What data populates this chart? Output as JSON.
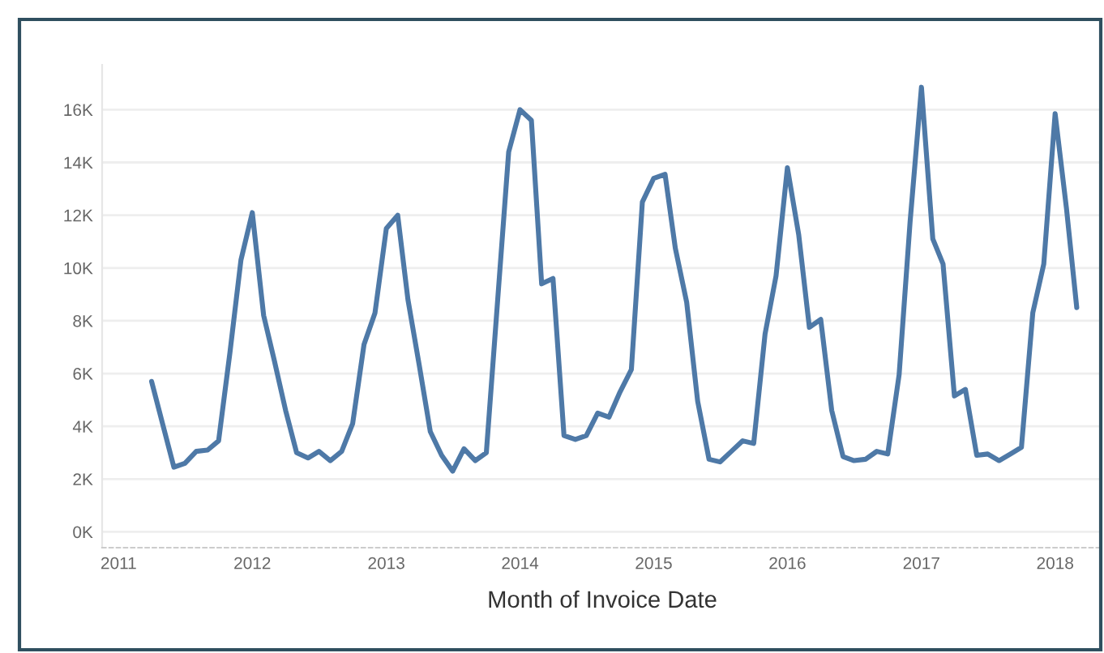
{
  "chart_data": {
    "type": "line",
    "xlabel": "Month of Invoice Date",
    "x": [
      "2011-04",
      "2011-05",
      "2011-06",
      "2011-07",
      "2011-08",
      "2011-09",
      "2011-10",
      "2011-11",
      "2011-12",
      "2012-01",
      "2012-02",
      "2012-03",
      "2012-04",
      "2012-05",
      "2012-06",
      "2012-07",
      "2012-08",
      "2012-09",
      "2012-10",
      "2012-11",
      "2012-12",
      "2013-01",
      "2013-02",
      "2013-03",
      "2013-04",
      "2013-05",
      "2013-06",
      "2013-07",
      "2013-08",
      "2013-09",
      "2013-10",
      "2013-11",
      "2013-12",
      "2014-01",
      "2014-02",
      "2014-03",
      "2014-04",
      "2014-05",
      "2014-06",
      "2014-07",
      "2014-08",
      "2014-09",
      "2014-10",
      "2014-11",
      "2014-12",
      "2015-01",
      "2015-02",
      "2015-03",
      "2015-04",
      "2015-05",
      "2015-06",
      "2015-07",
      "2015-08",
      "2015-09",
      "2015-10",
      "2015-11",
      "2015-12",
      "2016-01",
      "2016-02",
      "2016-03",
      "2016-04",
      "2016-05",
      "2016-06",
      "2016-07",
      "2016-08",
      "2016-09",
      "2016-10",
      "2016-11",
      "2016-12",
      "2017-01",
      "2017-02",
      "2017-03",
      "2017-04",
      "2017-05",
      "2017-06",
      "2017-07",
      "2017-08",
      "2017-09",
      "2017-10",
      "2017-11",
      "2017-12",
      "2018-01",
      "2018-02",
      "2018-03"
    ],
    "series": [
      {
        "color": "#4e79a7",
        "values": [
          5700,
          4100,
          2450,
          2600,
          3050,
          3100,
          3450,
          6800,
          10300,
          12100,
          8200,
          6500,
          4600,
          3000,
          2800,
          3050,
          2700,
          3050,
          4100,
          7100,
          8300,
          11500,
          12000,
          8800,
          6300,
          3800,
          2900,
          2300,
          3150,
          2700,
          3000,
          8800,
          14400,
          16000,
          15600,
          9400,
          9600,
          3650,
          3500,
          3650,
          4500,
          4350,
          5300,
          6150,
          12500,
          13400,
          13550,
          10750,
          8700,
          4950,
          2750,
          2650,
          3050,
          3450,
          3350,
          7500,
          9700,
          13800,
          11250,
          7750,
          8050,
          4600,
          2850,
          2700,
          2750,
          3050,
          2950,
          5950,
          11750,
          16850,
          11100,
          10150,
          5150,
          5400,
          2900,
          2950,
          2700,
          2950,
          3200,
          8300,
          10150,
          15850,
          12250,
          8500
        ]
      }
    ],
    "xlim": [
      "2010-11-17",
      "2018-05-10"
    ],
    "xticks": [
      "2011",
      "2012",
      "2013",
      "2014",
      "2015",
      "2016",
      "2017",
      "2018"
    ],
    "ylim": [
      -600,
      17700
    ],
    "yticks": [
      {
        "value": 0,
        "label": "0K"
      },
      {
        "value": 2000,
        "label": "2K"
      },
      {
        "value": 4000,
        "label": "4K"
      },
      {
        "value": 6000,
        "label": "6K"
      },
      {
        "value": 8000,
        "label": "8K"
      },
      {
        "value": 10000,
        "label": "10K"
      },
      {
        "value": 12000,
        "label": "12K"
      },
      {
        "value": 14000,
        "label": "14K"
      },
      {
        "value": 16000,
        "label": "16K"
      }
    ],
    "grid": "y",
    "marker": "none",
    "line_style": "solid"
  }
}
